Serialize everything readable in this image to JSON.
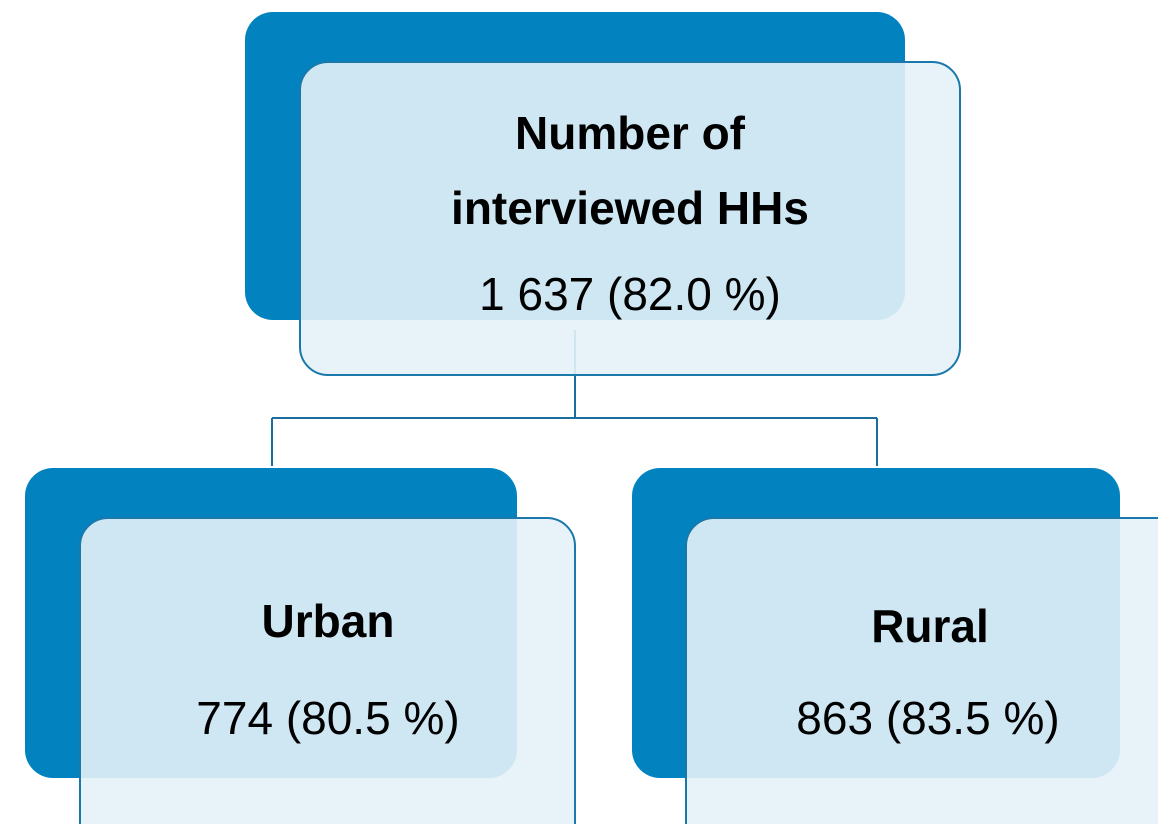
{
  "nodes": [
    {
      "title_lines": [
        "Number of",
        "interviewed HHs"
      ],
      "value": "1 637 (82.0 %)"
    },
    {
      "title_lines": [
        "Urban"
      ],
      "value": "774 (80.5 %)"
    },
    {
      "title_lines": [
        "Rural"
      ],
      "value": "863 (83.5 %)"
    }
  ]
}
